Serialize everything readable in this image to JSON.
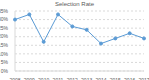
{
  "chart_data": {
    "type": "line",
    "title": "Selection Rate",
    "categories": [
      "2008",
      "2009",
      "2010",
      "2011",
      "2012",
      "2013",
      "2014",
      "2015",
      "2016",
      "2017"
    ],
    "values": [
      30,
      33,
      17,
      33,
      26,
      24,
      16,
      19,
      22,
      19
    ],
    "color": "#5b9bd5",
    "marker": "circle",
    "ylim": [
      0,
      35
    ],
    "yticks": [
      {
        "value": 0,
        "label": "0%"
      },
      {
        "value": 5,
        "label": "5%"
      },
      {
        "value": 10,
        "label": "10%"
      },
      {
        "value": 15,
        "label": "15%"
      },
      {
        "value": 20,
        "label": "20%"
      },
      {
        "value": 25,
        "label": "25%"
      },
      {
        "value": 30,
        "label": "30%"
      },
      {
        "value": 35,
        "label": "35%"
      }
    ],
    "grid": true
  }
}
